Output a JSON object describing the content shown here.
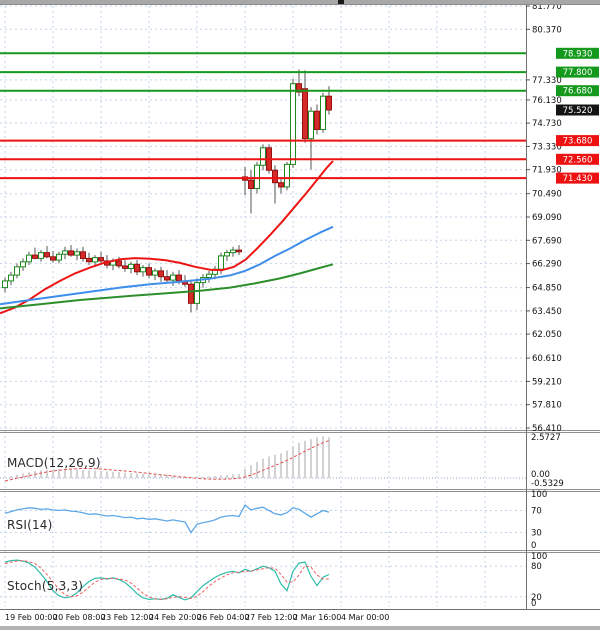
{
  "chart_data": {
    "type": "candlestick",
    "legend_position": "none",
    "grid": true,
    "price_axis": {
      "min": 56.41,
      "max": 81.77,
      "ticks": [
        81.77,
        80.37,
        77.33,
        76.13,
        74.73,
        73.33,
        71.93,
        70.49,
        69.09,
        67.69,
        66.29,
        64.85,
        63.45,
        62.05,
        60.61,
        59.21,
        57.81,
        56.41
      ],
      "tick_labels": [
        "81.770",
        "80.370",
        "77.330",
        "76.130",
        "74.730",
        "73.330",
        "71.930",
        "70.490",
        "69.090",
        "67.690",
        "66.290",
        "64.850",
        "63.450",
        "62.050",
        "60.610",
        "59.210",
        "57.810",
        "56.410"
      ]
    },
    "time_labels": [
      "19 Feb 00:00",
      "20 Feb 08:00",
      "23 Feb 12:00",
      "24 Feb 20:00",
      "26 Feb 04:00",
      "27 Feb 12:00",
      "2 Mar 16:00",
      "4 Mar 00:00"
    ],
    "levels": [
      {
        "value": 78.93,
        "label": "78.930",
        "kind": "resistance",
        "color": "#14991c",
        "line": true
      },
      {
        "value": 77.8,
        "label": "77.800",
        "kind": "resistance",
        "color": "#14991c",
        "line": true
      },
      {
        "value": 76.68,
        "label": "76.680",
        "kind": "resistance",
        "color": "#14991c",
        "line": true
      },
      {
        "value": 75.52,
        "label": "75.520",
        "kind": "last-price",
        "color": "#141414",
        "line": false
      },
      {
        "value": 73.68,
        "label": "73.680",
        "kind": "support",
        "color": "#ee1111",
        "line": true
      },
      {
        "value": 72.56,
        "label": "72.560",
        "kind": "support",
        "color": "#ee1111",
        "line": true
      },
      {
        "value": 71.43,
        "label": "71.430",
        "kind": "support",
        "color": "#ee1111",
        "line": true
      }
    ],
    "candles": [
      [
        64.85,
        65.45,
        64.55,
        65.25
      ],
      [
        65.25,
        65.8,
        65.0,
        65.6
      ],
      [
        65.6,
        66.3,
        65.4,
        66.1
      ],
      [
        66.1,
        66.6,
        65.85,
        66.4
      ],
      [
        66.4,
        67.0,
        66.2,
        66.8
      ],
      [
        66.8,
        67.25,
        66.55,
        66.6
      ],
      [
        66.6,
        67.1,
        66.4,
        66.95
      ],
      [
        66.95,
        67.35,
        66.6,
        66.7
      ],
      [
        66.7,
        67.05,
        66.35,
        66.5
      ],
      [
        66.5,
        67.0,
        66.3,
        66.85
      ],
      [
        66.85,
        67.3,
        66.55,
        67.05
      ],
      [
        67.05,
        67.4,
        66.7,
        66.8
      ],
      [
        66.8,
        67.2,
        66.5,
        67.0
      ],
      [
        67.0,
        67.3,
        66.4,
        66.6
      ],
      [
        66.6,
        66.95,
        66.2,
        66.4
      ],
      [
        66.4,
        66.8,
        66.1,
        66.65
      ],
      [
        66.65,
        67.0,
        66.3,
        66.45
      ],
      [
        66.45,
        66.8,
        66.0,
        66.2
      ],
      [
        66.2,
        66.6,
        65.9,
        66.45
      ],
      [
        66.45,
        66.7,
        66.0,
        66.15
      ],
      [
        66.15,
        66.5,
        65.8,
        66.0
      ],
      [
        66.0,
        66.4,
        65.7,
        66.25
      ],
      [
        66.25,
        66.5,
        65.6,
        65.8
      ],
      [
        65.8,
        66.2,
        65.5,
        66.05
      ],
      [
        66.05,
        66.3,
        65.4,
        65.6
      ],
      [
        65.6,
        66.0,
        65.3,
        65.85
      ],
      [
        65.85,
        66.1,
        65.2,
        65.5
      ],
      [
        65.5,
        65.9,
        65.1,
        65.3
      ],
      [
        65.3,
        65.8,
        64.95,
        65.6
      ],
      [
        65.6,
        65.9,
        65.05,
        65.25
      ],
      [
        65.25,
        65.6,
        64.9,
        65.05
      ],
      [
        65.05,
        65.3,
        63.35,
        63.9
      ],
      [
        63.9,
        65.4,
        63.5,
        65.15
      ],
      [
        65.15,
        65.65,
        64.85,
        65.45
      ],
      [
        65.45,
        65.85,
        65.15,
        65.65
      ],
      [
        65.65,
        66.15,
        65.35,
        65.95
      ],
      [
        65.95,
        66.95,
        65.65,
        66.75
      ],
      [
        66.75,
        67.1,
        66.45,
        66.95
      ],
      [
        66.95,
        67.3,
        66.7,
        67.1
      ],
      [
        67.1,
        67.4,
        66.8,
        67.0
      ],
      [
        71.5,
        72.1,
        70.4,
        71.3
      ],
      [
        71.3,
        71.9,
        69.3,
        70.8
      ],
      [
        70.8,
        72.4,
        70.5,
        72.2
      ],
      [
        72.2,
        73.45,
        71.9,
        73.25
      ],
      [
        73.25,
        73.45,
        71.7,
        71.9
      ],
      [
        71.9,
        72.2,
        69.9,
        71.15
      ],
      [
        71.15,
        71.5,
        70.5,
        70.9
      ],
      [
        70.9,
        72.4,
        70.7,
        72.25
      ],
      [
        72.25,
        77.4,
        72.05,
        77.1
      ],
      [
        77.1,
        77.95,
        76.35,
        76.6
      ],
      [
        76.8,
        77.9,
        73.55,
        73.8
      ],
      [
        73.8,
        75.7,
        71.95,
        75.45
      ],
      [
        75.45,
        75.85,
        74.05,
        74.35
      ],
      [
        74.35,
        76.55,
        74.15,
        76.35
      ],
      [
        76.35,
        76.95,
        75.25,
        75.52
      ]
    ],
    "moving_averages": [
      {
        "name": "ma-fast",
        "color": "#ee1414",
        "points": [
          [
            0,
            63.3
          ],
          [
            15,
            63.65
          ],
          [
            30,
            64.15
          ],
          [
            45,
            64.75
          ],
          [
            60,
            65.25
          ],
          [
            75,
            65.7
          ],
          [
            90,
            66.05
          ],
          [
            105,
            66.35
          ],
          [
            120,
            66.55
          ],
          [
            135,
            66.62
          ],
          [
            150,
            66.58
          ],
          [
            165,
            66.5
          ],
          [
            180,
            66.33
          ],
          [
            195,
            66.1
          ],
          [
            210,
            65.92
          ],
          [
            222,
            65.9
          ],
          [
            234,
            66.1
          ],
          [
            246,
            66.55
          ],
          [
            258,
            67.25
          ],
          [
            270,
            68.0
          ],
          [
            282,
            68.8
          ],
          [
            294,
            69.65
          ],
          [
            306,
            70.5
          ],
          [
            318,
            71.4
          ],
          [
            326,
            72.0
          ],
          [
            333,
            72.45
          ]
        ]
      },
      {
        "name": "ma-mid",
        "color": "#3f8eea",
        "points": [
          [
            0,
            63.85
          ],
          [
            30,
            64.1
          ],
          [
            60,
            64.35
          ],
          [
            90,
            64.6
          ],
          [
            120,
            64.85
          ],
          [
            150,
            65.05
          ],
          [
            180,
            65.2
          ],
          [
            210,
            65.38
          ],
          [
            230,
            65.58
          ],
          [
            245,
            65.85
          ],
          [
            260,
            66.25
          ],
          [
            275,
            66.75
          ],
          [
            290,
            67.2
          ],
          [
            305,
            67.7
          ],
          [
            320,
            68.15
          ],
          [
            333,
            68.5
          ]
        ]
      },
      {
        "name": "ma-slow",
        "color": "#2c8f2c",
        "points": [
          [
            0,
            63.6
          ],
          [
            40,
            63.85
          ],
          [
            80,
            64.1
          ],
          [
            120,
            64.3
          ],
          [
            160,
            64.48
          ],
          [
            200,
            64.66
          ],
          [
            230,
            64.85
          ],
          [
            255,
            65.1
          ],
          [
            280,
            65.4
          ],
          [
            300,
            65.7
          ],
          [
            318,
            66.0
          ],
          [
            333,
            66.25
          ]
        ]
      }
    ],
    "macd": {
      "label": "MACD(12,26,9)",
      "max": 2.5727,
      "min": -0.5329,
      "axis_labels": [
        "2.5727",
        "0.00",
        "-0.5329"
      ],
      "histogram": [
        0.05,
        0.12,
        0.2,
        0.28,
        0.36,
        0.42,
        0.47,
        0.5,
        0.52,
        0.54,
        0.54,
        0.53,
        0.51,
        0.49,
        0.47,
        0.45,
        0.43,
        0.41,
        0.38,
        0.36,
        0.33,
        0.31,
        0.28,
        0.26,
        0.24,
        0.21,
        0.19,
        0.17,
        0.15,
        0.13,
        0.1,
        0.07,
        0.06,
        0.07,
        0.09,
        0.12,
        0.16,
        0.19,
        0.22,
        0.24,
        0.55,
        0.78,
        0.98,
        1.18,
        1.32,
        1.42,
        1.52,
        1.68,
        1.95,
        2.15,
        2.28,
        2.38,
        2.48,
        2.55,
        2.5
      ],
      "signal": [
        -0.18,
        -0.1,
        -0.02,
        0.06,
        0.14,
        0.22,
        0.3,
        0.37,
        0.43,
        0.48,
        0.52,
        0.55,
        0.57,
        0.58,
        0.58,
        0.57,
        0.55,
        0.52,
        0.49,
        0.46,
        0.43,
        0.4,
        0.36,
        0.32,
        0.28,
        0.24,
        0.2,
        0.16,
        0.12,
        0.08,
        0.05,
        0.02,
        -0.02,
        -0.05,
        -0.07,
        -0.08,
        -0.08,
        -0.07,
        -0.05,
        -0.02,
        0.06,
        0.18,
        0.32,
        0.47,
        0.62,
        0.77,
        0.92,
        1.08,
        1.26,
        1.45,
        1.64,
        1.82,
        2.0,
        2.16,
        2.3
      ]
    },
    "rsi": {
      "label": "RSI(14)",
      "levels": [
        100,
        70,
        30,
        0
      ],
      "level_labels": [
        "100",
        "70",
        "30",
        "0"
      ],
      "values": [
        65,
        68,
        71,
        73,
        75,
        74,
        72,
        73,
        71,
        70,
        71,
        69,
        68,
        66,
        63,
        64,
        62,
        60,
        61,
        59,
        57,
        58,
        55,
        56,
        54,
        55,
        53,
        51,
        53,
        51,
        49,
        30,
        45,
        48,
        50,
        53,
        58,
        60,
        61,
        59,
        80,
        71,
        74,
        76,
        70,
        64,
        62,
        66,
        75,
        72,
        65,
        58,
        64,
        70,
        67
      ]
    },
    "stoch": {
      "label": "Stoch(5,3,3)",
      "levels": [
        100,
        80,
        20,
        0
      ],
      "level_labels": [
        "100",
        "80",
        "20",
        "0"
      ],
      "k": [
        88,
        91,
        92,
        90,
        86,
        78,
        65,
        50,
        32,
        22,
        18,
        20,
        28,
        40,
        50,
        56,
        57,
        55,
        57,
        54,
        48,
        38,
        26,
        18,
        15,
        16,
        15,
        17,
        24,
        19,
        14,
        18,
        30,
        42,
        50,
        58,
        64,
        68,
        70,
        67,
        74,
        70,
        75,
        80,
        77,
        70,
        45,
        32,
        70,
        86,
        88,
        60,
        42,
        58,
        64
      ],
      "d": [
        85,
        88,
        90,
        91,
        89,
        85,
        76,
        64,
        49,
        35,
        24,
        20,
        22,
        29,
        39,
        49,
        54,
        56,
        56,
        55,
        53,
        47,
        37,
        27,
        20,
        16,
        15,
        16,
        19,
        20,
        19,
        17,
        21,
        30,
        41,
        50,
        57,
        63,
        67,
        68,
        70,
        70,
        73,
        75,
        77,
        76,
        64,
        49,
        49,
        63,
        81,
        78,
        63,
        55,
        55
      ]
    },
    "colors": {
      "bull_body": "#ffffff",
      "bull_border": "#1d8a1d",
      "bear_body": "#d42a2a",
      "bear_border": "#971111",
      "wick": "#555555",
      "grid": "#c3d3e8",
      "macd_hist": "#b5b5b5",
      "macd_signal": "#e85050",
      "rsi_line": "#5fa8e8",
      "stoch_k": "#2fbcaa",
      "stoch_d": "#ef6060",
      "axis_text": "#111111",
      "separator": "#909090"
    }
  }
}
